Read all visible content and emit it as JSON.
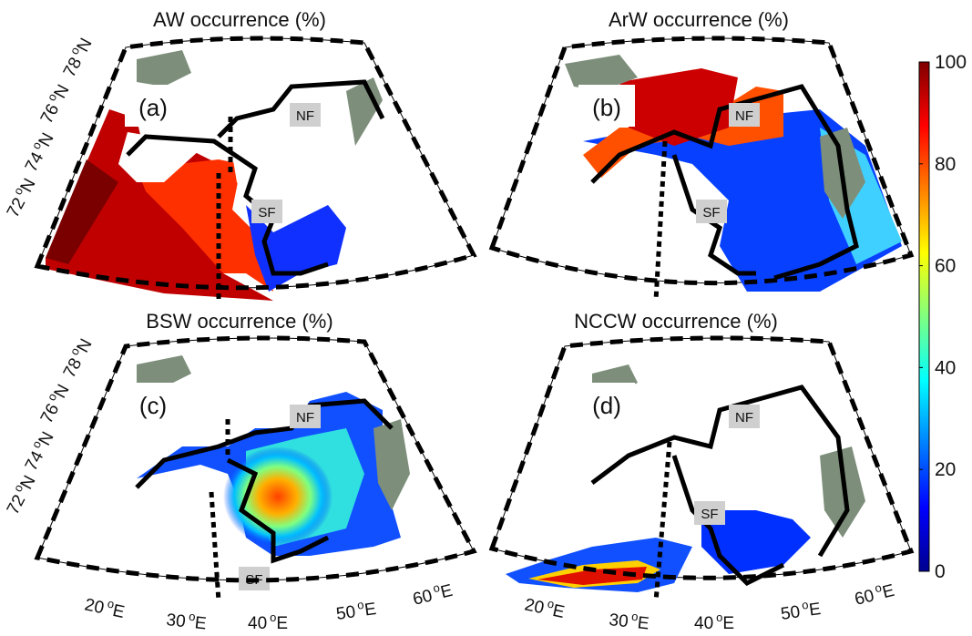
{
  "chart_data": [
    {
      "type": "heatmap",
      "panel": "(a)",
      "title": "AW occurrence (%)",
      "fronts": [
        "NF",
        "SF"
      ],
      "latitude_ticks": [
        "72",
        "74",
        "76",
        "78"
      ],
      "longitude_ticks": [],
      "hotspots": [
        {
          "region": "west of ~32°E, 71–74°N",
          "value_pct": 90
        },
        {
          "region": "central basin up to ~74°N",
          "value_pct": 80
        },
        {
          "region": "south-east near 40°E",
          "value_pct": 20
        }
      ]
    },
    {
      "type": "heatmap",
      "panel": "(b)",
      "title": "ArW occurrence (%)",
      "fronts": [
        "NF",
        "SF"
      ],
      "latitude_ticks": [],
      "longitude_ticks": [],
      "hotspots": [
        {
          "region": "northern basin 76–78°N",
          "value_pct": 85
        },
        {
          "region": "east of NF near Novaya Zemlya",
          "value_pct": 30
        },
        {
          "region": "southern/central basin",
          "value_pct": 0
        }
      ]
    },
    {
      "type": "heatmap",
      "panel": "(c)",
      "title": "BSW occurrence (%)",
      "fronts": [
        "NF",
        "SF"
      ],
      "latitude_ticks": [
        "72",
        "74",
        "76",
        "78"
      ],
      "longitude_ticks": [
        "20",
        "30",
        "40",
        "50",
        "60"
      ],
      "hotspots": [
        {
          "region": "central basin 73–75°N, 35–45°E",
          "value_pct": 75
        },
        {
          "region": "eastern basin",
          "value_pct": 20
        }
      ]
    },
    {
      "type": "heatmap",
      "panel": "(d)",
      "title": "NCCW occurrence (%)",
      "fronts": [
        "NF",
        "SF"
      ],
      "latitude_ticks": [],
      "longitude_ticks": [
        "20",
        "30",
        "40",
        "50",
        "60"
      ],
      "hotspots": [
        {
          "region": "Norwegian coast 20–32°E, ~70°N",
          "value_pct": 90
        },
        {
          "region": "south-east coast",
          "value_pct": 10
        }
      ]
    }
  ],
  "colorbar": {
    "min": 0,
    "max": 100,
    "ticks": [
      "0",
      "20",
      "40",
      "60",
      "80",
      "100"
    ],
    "colormap": "jet",
    "colors": [
      "#00008f",
      "#0000ff",
      "#0080ff",
      "#00ffff",
      "#80ff80",
      "#ffff00",
      "#ff8000",
      "#ff0000",
      "#800000"
    ]
  },
  "land_color": "#7d8f7b",
  "degree_symbol": "o",
  "lat_hemisphere": "N",
  "lon_hemisphere": "E"
}
